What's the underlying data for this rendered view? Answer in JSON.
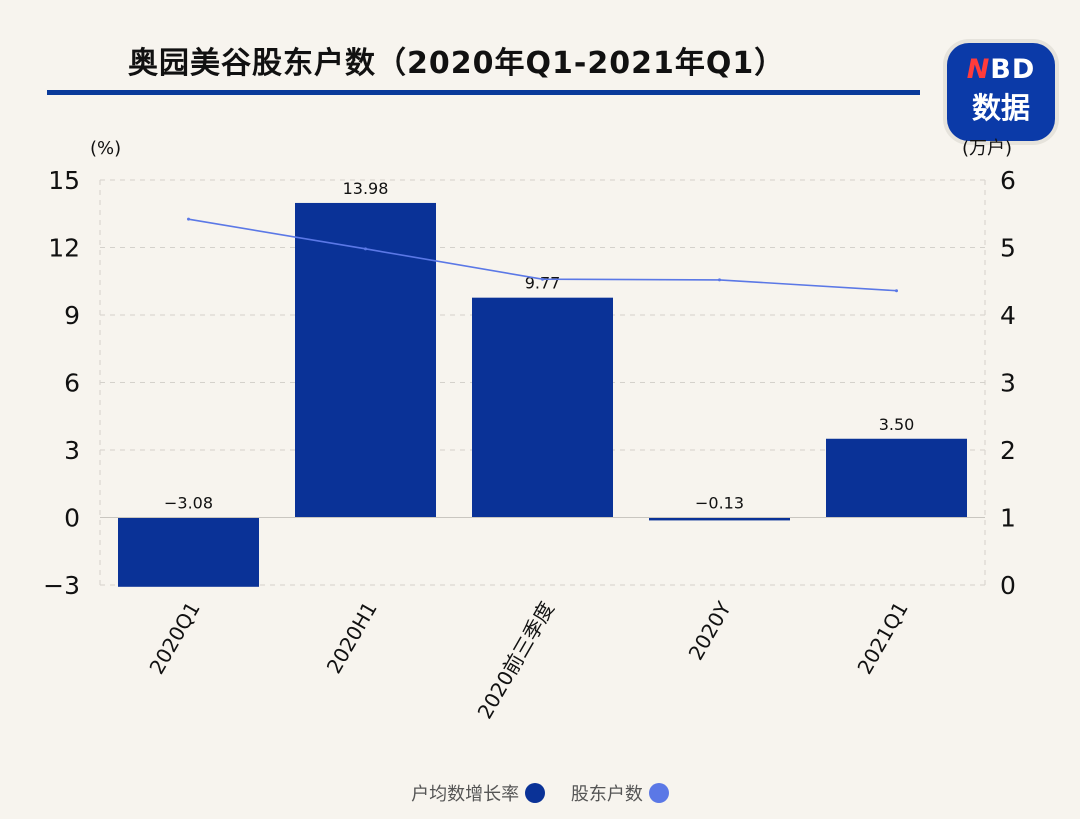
{
  "header": {
    "title": "奥园美谷股东户数（2020年Q1-2021年Q1）"
  },
  "logo": {
    "line1_prefix": "N",
    "line1_rest": "BD",
    "line2": "数据",
    "bg_color": "#0b3aa8"
  },
  "chart_data": {
    "type": "bar",
    "categories": [
      "2020Q1",
      "2020H1",
      "2020前三季度",
      "2020Y",
      "2021Q1"
    ],
    "series": [
      {
        "name": "户均数增长率",
        "type": "bar",
        "axis": "left",
        "color": "#0a3297",
        "values": [
          -3.08,
          13.98,
          9.77,
          -0.13,
          3.5
        ],
        "labels": [
          "−3.08",
          "13.98",
          "9.77",
          "−0.13",
          "3.50"
        ]
      },
      {
        "name": "股东户数",
        "type": "line",
        "axis": "right",
        "color": "#5b78e6",
        "values": [
          5.42,
          4.98,
          4.53,
          4.52,
          4.36
        ]
      }
    ],
    "y_left": {
      "unit": "(%)",
      "ylim": [
        -3,
        15
      ],
      "ticks": [
        15,
        12,
        9,
        6,
        3,
        0,
        -3
      ],
      "tick_labels": [
        "15",
        "12",
        "9",
        "6",
        "3",
        "0",
        "−3"
      ]
    },
    "y_right": {
      "unit": "(万户)",
      "ylim": [
        0,
        6
      ],
      "ticks": [
        6,
        5,
        4,
        3,
        2,
        1,
        0
      ],
      "tick_labels": [
        "6",
        "5",
        "4",
        "3",
        "2",
        "1",
        "0"
      ]
    },
    "grid": "horizontal-dashed",
    "legend_position": "bottom-center"
  }
}
